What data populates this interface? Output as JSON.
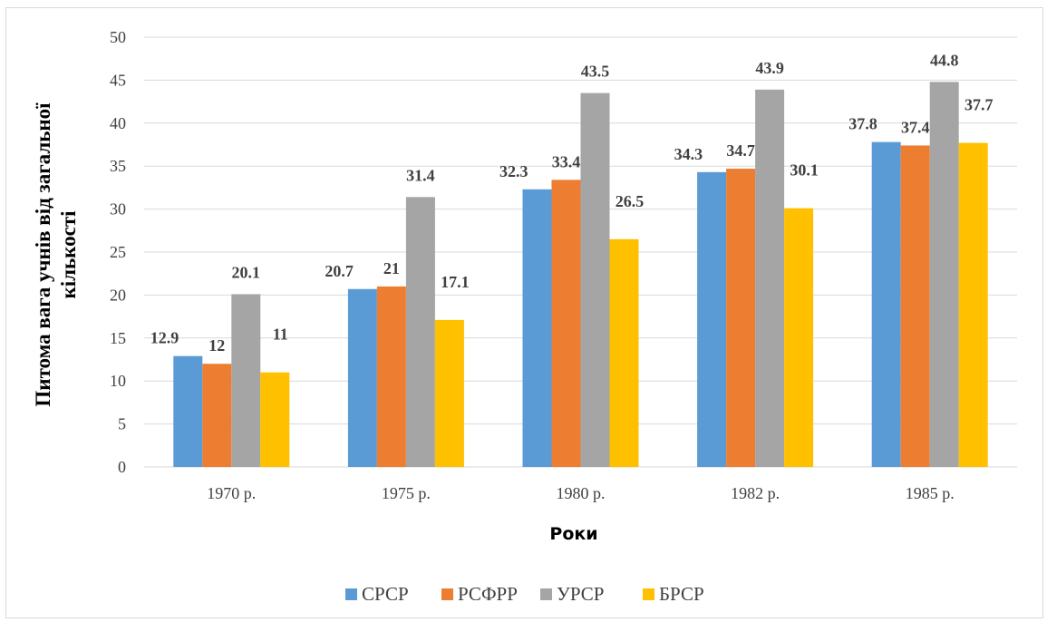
{
  "chart_data": {
    "type": "bar",
    "categories": [
      "1970 р.",
      "1975 р.",
      "1980 р.",
      "1982 р.",
      "1985 р."
    ],
    "series": [
      {
        "name": "СРСР",
        "values": [
          12.9,
          20.7,
          32.3,
          34.3,
          37.8
        ],
        "color": "#5b9bd5",
        "labels": [
          "12.9",
          "20.7",
          "32.3",
          "34.3",
          "37.8"
        ]
      },
      {
        "name": "РСФРР",
        "values": [
          12,
          21,
          33.4,
          34.7,
          37.4
        ],
        "color": "#ed7d31",
        "labels": [
          "12",
          "21",
          "33.4",
          "34.7",
          "37.4"
        ]
      },
      {
        "name": "УРСР",
        "values": [
          20.1,
          31.4,
          43.5,
          43.9,
          44.8
        ],
        "color": "#a5a5a5",
        "labels": [
          "20.1",
          "31.4",
          "43.5",
          "43.9",
          "44.8"
        ]
      },
      {
        "name": "БРСР",
        "values": [
          11,
          17.1,
          26.5,
          30.1,
          37.7
        ],
        "color": "#ffc000",
        "labels": [
          "11",
          "17.1",
          "26.5",
          "30.1",
          "37.7"
        ]
      }
    ],
    "xlabel": "Роки",
    "ylabel_lines": [
      "Питома вага учнів від загальної",
      "кількості"
    ],
    "ylim": [
      0,
      50
    ],
    "yticks": [
      "0",
      "5",
      "10",
      "15",
      "20",
      "25",
      "30",
      "35",
      "40",
      "45",
      "50"
    ],
    "grid": true,
    "legend": "bottom"
  }
}
